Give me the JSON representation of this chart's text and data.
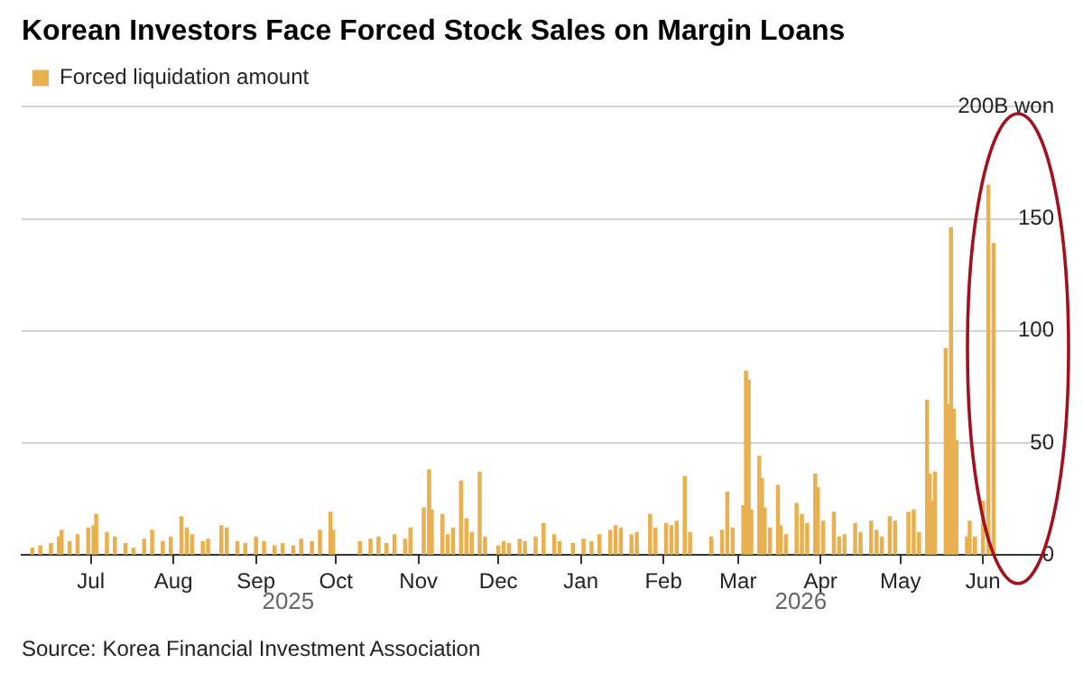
{
  "chart_data": {
    "type": "bar",
    "title": "Korean Investors Face Forced Stock Sales on Margin Loans",
    "legend": "top left",
    "grid": "y",
    "xlim": [
      "2025-06-05",
      "2026-06-25"
    ],
    "xticks": [
      {
        "value": "2025-07-01",
        "label": "Jul"
      },
      {
        "value": "2025-08-01",
        "label": "Aug"
      },
      {
        "value": "2025-09-01",
        "label": "Sep"
      },
      {
        "value": "2025-10-01",
        "label": "Oct"
      },
      {
        "value": "2025-11-01",
        "label": "Nov"
      },
      {
        "value": "2025-12-01",
        "label": "Dec"
      },
      {
        "value": "2026-01-01",
        "label": "Jan"
      },
      {
        "value": "2026-02-01",
        "label": "Feb"
      },
      {
        "value": "2026-03-01",
        "label": "Mar"
      },
      {
        "value": "2026-04-01",
        "label": "Apr"
      },
      {
        "value": "2026-05-01",
        "label": "May"
      },
      {
        "value": "2026-06-01",
        "label": "Jun"
      }
    ],
    "ylim": [
      0,
      200
    ],
    "yticks": [
      0,
      50,
      100,
      150,
      {
        "value": 200,
        "label": "200B won"
      }
    ],
    "x": [
      "2025-06-09",
      "2025-06-12",
      "2025-06-16",
      "2025-06-19",
      "2025-06-20",
      "2025-06-23",
      "2025-06-26",
      "2025-06-30",
      "2025-07-02",
      "2025-07-03",
      "2025-07-07",
      "2025-07-10",
      "2025-07-14",
      "2025-07-17",
      "2025-07-21",
      "2025-07-24",
      "2025-07-28",
      "2025-07-31",
      "2025-08-04",
      "2025-08-06",
      "2025-08-08",
      "2025-08-12",
      "2025-08-14",
      "2025-08-19",
      "2025-08-21",
      "2025-08-25",
      "2025-08-28",
      "2025-09-01",
      "2025-09-04",
      "2025-09-08",
      "2025-09-11",
      "2025-09-15",
      "2025-09-18",
      "2025-09-22",
      "2025-09-25",
      "2025-09-29",
      "2025-09-30",
      "2025-10-10",
      "2025-10-14",
      "2025-10-17",
      "2025-10-20",
      "2025-10-23",
      "2025-10-27",
      "2025-10-29",
      "2025-11-03",
      "2025-11-05",
      "2025-11-06",
      "2025-11-10",
      "2025-11-12",
      "2025-11-14",
      "2025-11-17",
      "2025-11-19",
      "2025-11-21",
      "2025-11-24",
      "2025-11-26",
      "2025-12-01",
      "2025-12-03",
      "2025-12-05",
      "2025-12-09",
      "2025-12-11",
      "2025-12-15",
      "2025-12-18",
      "2025-12-22",
      "2025-12-24",
      "2025-12-29",
      "2026-01-02",
      "2026-01-05",
      "2026-01-08",
      "2026-01-12",
      "2026-01-14",
      "2026-01-16",
      "2026-01-20",
      "2026-01-22",
      "2026-01-27",
      "2026-01-29",
      "2026-02-02",
      "2026-02-04",
      "2026-02-06",
      "2026-02-09",
      "2026-02-11",
      "2026-02-19",
      "2026-02-23",
      "2026-02-25",
      "2026-02-27",
      "2026-03-03",
      "2026-03-04",
      "2026-03-05",
      "2026-03-06",
      "2026-03-09",
      "2026-03-10",
      "2026-03-11",
      "2026-03-13",
      "2026-03-16",
      "2026-03-17",
      "2026-03-19",
      "2026-03-23",
      "2026-03-25",
      "2026-03-27",
      "2026-03-30",
      "2026-03-31",
      "2026-04-02",
      "2026-04-06",
      "2026-04-08",
      "2026-04-10",
      "2026-04-14",
      "2026-04-16",
      "2026-04-20",
      "2026-04-22",
      "2026-04-24",
      "2026-04-27",
      "2026-04-29",
      "2026-05-04",
      "2026-05-06",
      "2026-05-08",
      "2026-05-11",
      "2026-05-12",
      "2026-05-13",
      "2026-05-14",
      "2026-05-18",
      "2026-05-19",
      "2026-05-20",
      "2026-05-21",
      "2026-05-22",
      "2026-05-26",
      "2026-05-27",
      "2026-05-29",
      "2026-06-01",
      "2026-06-03",
      "2026-06-05"
    ],
    "series": [
      {
        "name": "Forced liquidation amount",
        "color": "#e8b04f",
        "values": [
          3,
          4,
          5,
          8,
          11,
          6,
          9,
          12,
          13,
          18,
          10,
          8,
          5,
          3,
          7,
          11,
          6,
          8,
          17,
          12,
          9,
          6,
          7,
          13,
          12,
          6,
          5,
          8,
          6,
          4,
          5,
          4,
          7,
          6,
          11,
          19,
          11,
          6,
          7,
          8,
          5,
          9,
          7,
          12,
          21,
          38,
          20,
          18,
          9,
          12,
          33,
          16,
          10,
          37,
          8,
          4,
          6,
          5,
          7,
          6,
          8,
          14,
          9,
          6,
          5,
          7,
          6,
          9,
          11,
          13,
          12,
          9,
          10,
          18,
          12,
          14,
          13,
          15,
          35,
          10,
          8,
          11,
          28,
          12,
          22,
          82,
          78,
          20,
          44,
          34,
          21,
          12,
          31,
          13,
          9,
          23,
          18,
          14,
          36,
          30,
          15,
          19,
          8,
          9,
          14,
          10,
          15,
          11,
          8,
          17,
          15,
          19,
          20,
          10,
          69,
          36,
          24,
          37,
          92,
          67,
          146,
          65,
          51,
          8,
          15,
          8,
          24,
          165,
          139
        ]
      }
    ],
    "annotations": [
      "2025",
      "2026",
      "Source: Korea Financial Investment Association"
    ]
  }
}
